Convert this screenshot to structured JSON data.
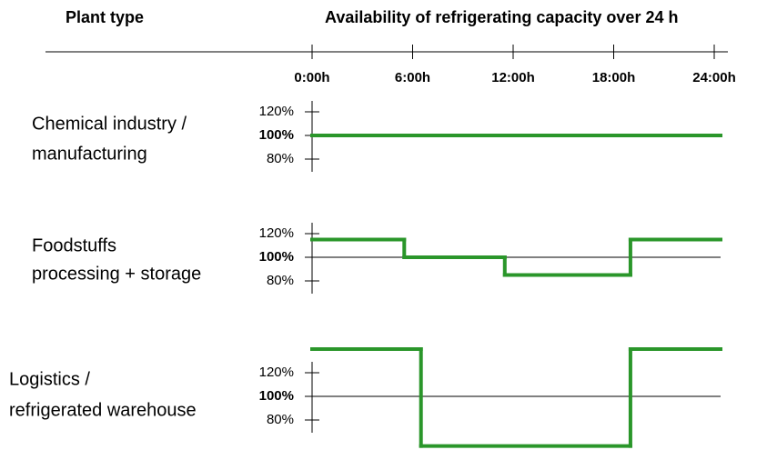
{
  "header": {
    "left": "Plant type",
    "right": "Availability of refrigerating capacity over 24 h"
  },
  "chart_data": [
    {
      "type": "step",
      "title_lines": [
        "Chemical industry /",
        "manufacturing"
      ],
      "x": [
        0
      ],
      "values": [
        100
      ],
      "color": "#2a962a",
      "xlim": [
        0,
        24
      ],
      "ylim": [
        50,
        150
      ],
      "xticks": [
        {
          "value": 0,
          "label": "0:00h"
        },
        {
          "value": 6,
          "label": "6:00h"
        },
        {
          "value": 12,
          "label": "12:00h"
        },
        {
          "value": 18,
          "label": "18:00h"
        },
        {
          "value": 24,
          "label": "24:00h"
        }
      ],
      "yticks": [
        {
          "value": 80,
          "label": "80%"
        },
        {
          "value": 100,
          "label": "100%"
        },
        {
          "value": 120,
          "label": "120%"
        }
      ],
      "reference_line": 100
    },
    {
      "type": "step",
      "title_lines": [
        "Foodstuffs",
        "processing + storage"
      ],
      "x": [
        0,
        5.5,
        11.5,
        19
      ],
      "values": [
        115,
        100,
        85,
        115
      ],
      "color": "#2a962a",
      "xlim": [
        0,
        24
      ],
      "ylim": [
        50,
        150
      ],
      "yticks": [
        {
          "value": 80,
          "label": "80%"
        },
        {
          "value": 100,
          "label": "100%"
        },
        {
          "value": 120,
          "label": "120%"
        }
      ],
      "reference_line": 100
    },
    {
      "type": "step",
      "title_lines": [
        "Logistics /",
        "refrigerated warehouse"
      ],
      "x": [
        0,
        6.5,
        19
      ],
      "values": [
        140,
        58,
        140
      ],
      "color": "#2a962a",
      "xlim": [
        0,
        24
      ],
      "ylim": [
        50,
        150
      ],
      "yticks": [
        {
          "value": 80,
          "label": "80%"
        },
        {
          "value": 100,
          "label": "100%"
        },
        {
          "value": 120,
          "label": "120%"
        }
      ],
      "reference_line": 100
    }
  ]
}
